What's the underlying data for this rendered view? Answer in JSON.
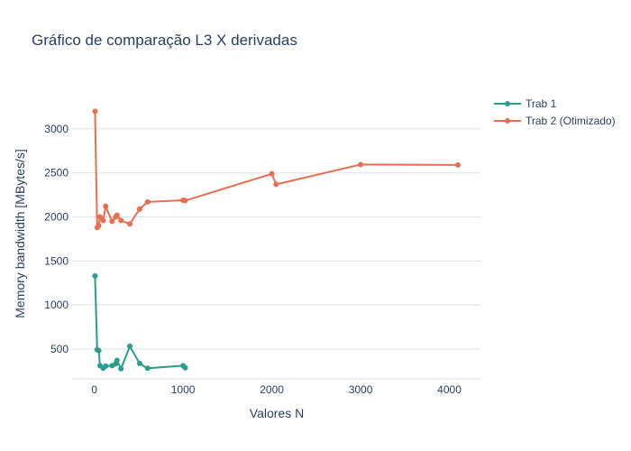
{
  "chart_data": {
    "type": "line",
    "title": "Gráfico de comparação L3 X derivadas",
    "xlabel": "Valores N",
    "ylabel": "Memory bandwidth [MBytes/s]",
    "xlim": [
      -250,
      4350
    ],
    "ylim": [
      160,
      3440
    ],
    "xticks": [
      0,
      1000,
      2000,
      3000,
      4000
    ],
    "yticks": [
      500,
      1000,
      1500,
      2000,
      2500,
      3000
    ],
    "grid": true,
    "legend_position": "top-right",
    "series": [
      {
        "name": "Trab 1",
        "color": "#2a9d8f",
        "points": [
          [
            8,
            1330
          ],
          [
            32,
            490
          ],
          [
            50,
            480
          ],
          [
            64,
            310
          ],
          [
            100,
            280
          ],
          [
            128,
            305
          ],
          [
            200,
            310
          ],
          [
            240,
            330
          ],
          [
            256,
            370
          ],
          [
            300,
            275
          ],
          [
            400,
            530
          ],
          [
            511,
            335
          ],
          [
            600,
            280
          ],
          [
            1000,
            310
          ],
          [
            1024,
            285
          ]
        ]
      },
      {
        "name": "Trab 2 (Otimizado)",
        "color": "#e76f51",
        "points": [
          [
            8,
            3200
          ],
          [
            32,
            1880
          ],
          [
            50,
            1900
          ],
          [
            64,
            2000
          ],
          [
            100,
            1960
          ],
          [
            128,
            2120
          ],
          [
            200,
            1950
          ],
          [
            240,
            2000
          ],
          [
            256,
            2020
          ],
          [
            300,
            1960
          ],
          [
            400,
            1920
          ],
          [
            511,
            2090
          ],
          [
            600,
            2170
          ],
          [
            1000,
            2190
          ],
          [
            1024,
            2185
          ],
          [
            2000,
            2490
          ],
          [
            2048,
            2370
          ],
          [
            3000,
            2595
          ],
          [
            4096,
            2590
          ]
        ]
      }
    ]
  }
}
